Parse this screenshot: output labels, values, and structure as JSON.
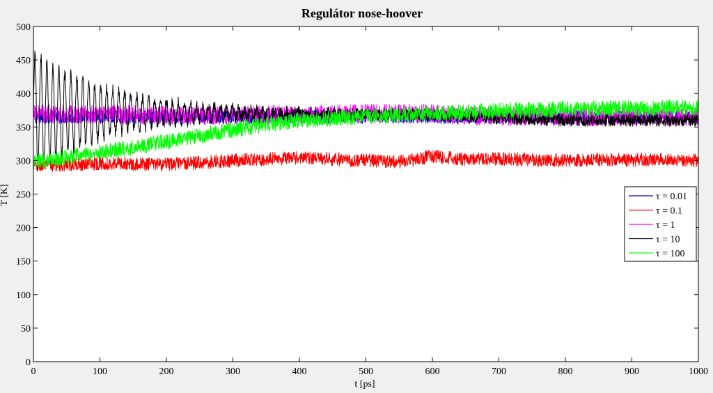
{
  "chart_data": {
    "type": "line",
    "title": "Regulátor nose-hoover",
    "xlabel": "t [ps]",
    "ylabel": "T [K]",
    "xlim": [
      0,
      1000
    ],
    "ylim": [
      0,
      500
    ],
    "xticks": [
      0,
      100,
      200,
      300,
      400,
      500,
      600,
      700,
      800,
      900,
      1000
    ],
    "yticks": [
      0,
      50,
      100,
      150,
      200,
      250,
      300,
      350,
      400,
      450,
      500
    ],
    "grid": false,
    "legend_position": "right",
    "series": [
      {
        "name": "τ = 0.01",
        "color": "#0000cc",
        "x": [
          0,
          100,
          200,
          300,
          400,
          500,
          600,
          700,
          800,
          900,
          1000
        ],
        "y": [
          365,
          365,
          365,
          365,
          365,
          365,
          365,
          365,
          365,
          365,
          365
        ],
        "noise": 10
      },
      {
        "name": "τ = 0.1",
        "color": "#ff0000",
        "x": [
          0,
          50,
          100,
          150,
          200,
          250,
          300,
          350,
          400,
          450,
          500,
          550,
          600,
          650,
          700,
          750,
          800,
          850,
          900,
          950,
          1000
        ],
        "y": [
          292,
          294,
          296,
          295,
          294,
          297,
          300,
          302,
          304,
          302,
          300,
          298,
          306,
          302,
          303,
          301,
          300,
          301,
          301,
          302,
          300
        ],
        "noise": 10
      },
      {
        "name": "τ = 1",
        "color": "#ff00ff",
        "x": [
          0,
          100,
          200,
          300,
          400,
          500,
          600,
          650,
          700,
          800,
          900,
          1000
        ],
        "y": [
          370,
          369,
          368,
          367,
          368,
          370,
          370,
          367,
          366,
          365,
          365,
          364
        ],
        "noise": 14
      },
      {
        "name": "τ = 10",
        "color": "#000000",
        "x": [
          0,
          100,
          200,
          300,
          400,
          500,
          600,
          700,
          800,
          900,
          1000
        ],
        "y": [
          372,
          372,
          372,
          370,
          370,
          369,
          368,
          363,
          360,
          360,
          360
        ],
        "noise": 9,
        "oscillation": {
          "amplitude": 90,
          "period_ps": 9,
          "decay_ps": 120
        }
      },
      {
        "name": "τ = 100",
        "color": "#00ff00",
        "x": [
          0,
          50,
          100,
          150,
          200,
          250,
          300,
          350,
          400,
          450,
          500,
          550,
          600,
          700,
          800,
          900,
          1000
        ],
        "y": [
          298,
          305,
          312,
          320,
          328,
          337,
          346,
          354,
          360,
          363,
          366,
          368,
          370,
          374,
          377,
          378,
          379
        ],
        "noise": 12
      }
    ]
  }
}
